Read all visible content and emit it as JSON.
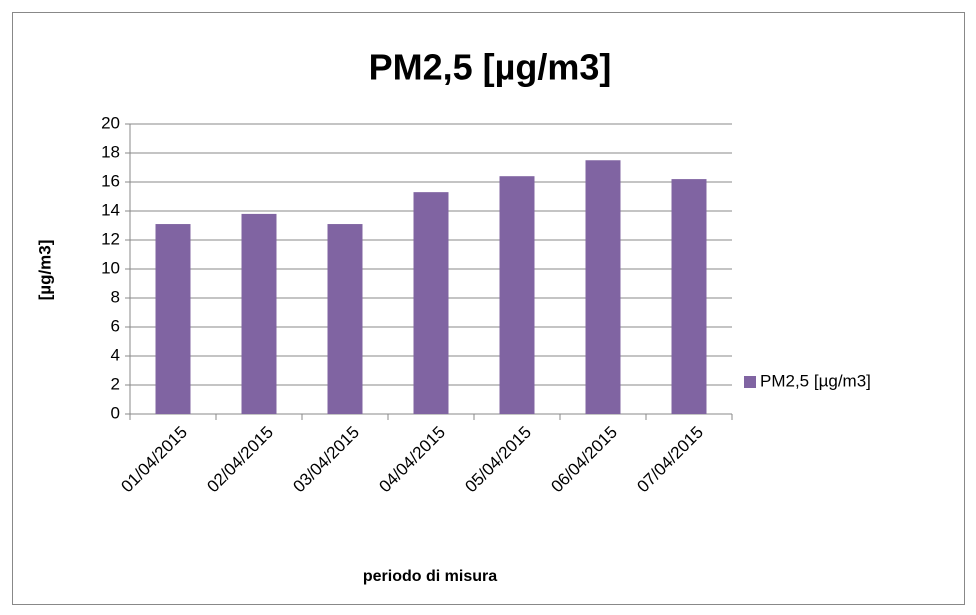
{
  "chart_data": {
    "type": "bar",
    "title": "PM2,5 [µg/m3]",
    "x_label": "periodo di misura",
    "y_label": "[µg/m3]",
    "categories": [
      "01/04/2015",
      "02/04/2015",
      "03/04/2015",
      "04/04/2015",
      "05/04/2015",
      "06/04/2015",
      "07/04/2015"
    ],
    "series": [
      {
        "name": "PM2,5 [µg/m3]",
        "color": "#8064a2",
        "values": [
          13.1,
          13.8,
          13.1,
          15.3,
          16.4,
          17.5,
          16.2
        ]
      }
    ],
    "ylim": [
      0,
      20
    ],
    "yticks": [
      0,
      2,
      4,
      6,
      8,
      10,
      12,
      14,
      16,
      18,
      20
    ],
    "grid": true,
    "legend": "right"
  }
}
